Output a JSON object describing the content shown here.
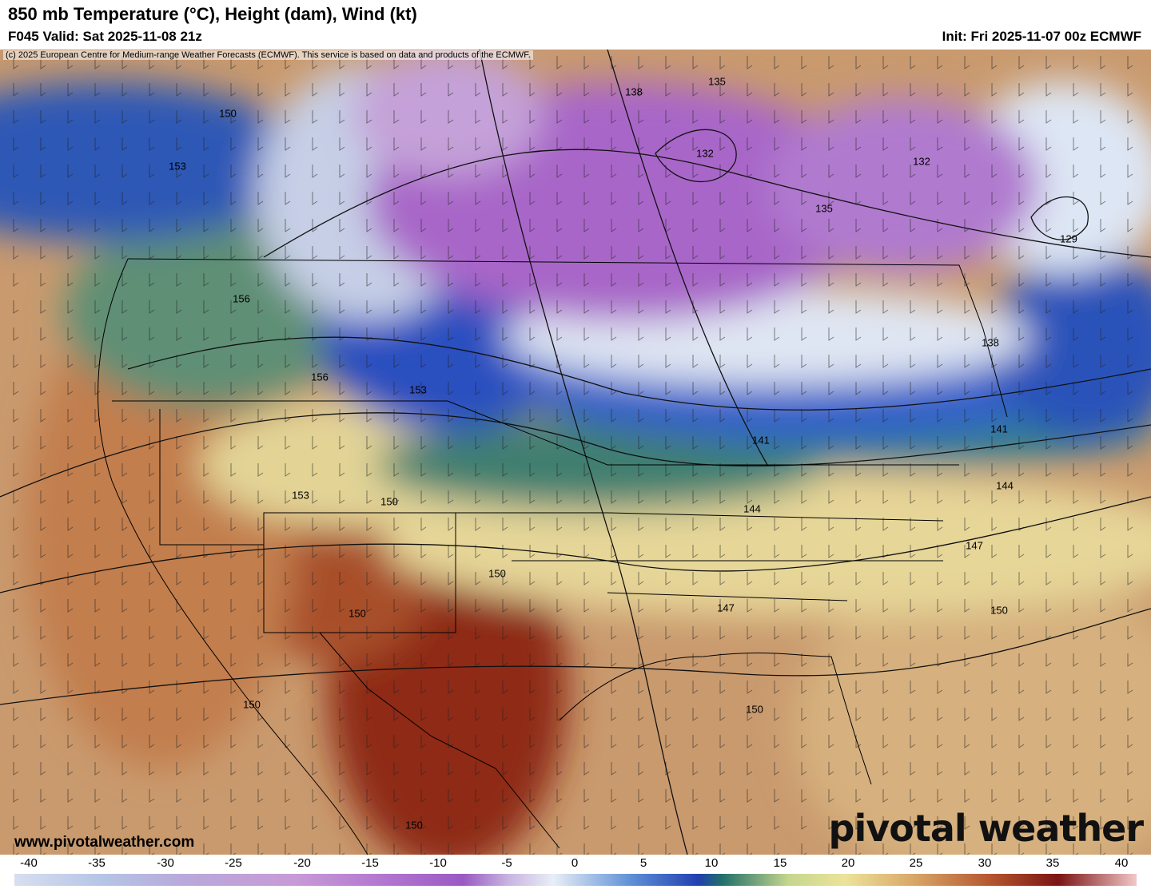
{
  "header": {
    "title": "850 mb Temperature (°C), Height (dam), Wind (kt)",
    "valid": "F045 Valid: Sat 2025-11-08 21z",
    "init": "Init: Fri 2025-11-07 00z ECMWF"
  },
  "map": {
    "copyright": "(c) 2025 European Centre for Medium-range Weather Forecasts (ECMWF). This service is based on data and products of the ECMWF.",
    "site_url": "www.pivotalweather.com",
    "brand": "pivotal weather",
    "height_labels": [
      "150",
      "153",
      "156",
      "156",
      "153",
      "153",
      "150",
      "150",
      "150",
      "150",
      "138",
      "135",
      "132",
      "132",
      "135",
      "129",
      "138",
      "141",
      "141",
      "144",
      "144",
      "147",
      "147",
      "150",
      "150",
      "150"
    ]
  },
  "colorbar": {
    "ticks": [
      "-40",
      "-35",
      "-30",
      "-25",
      "-20",
      "-15",
      "-10",
      "-5",
      "0",
      "5",
      "10",
      "15",
      "20",
      "25",
      "30",
      "35",
      "40"
    ],
    "colors": [
      "#d7dff0",
      "#b5c4e6",
      "#b8a9db",
      "#c89ad6",
      "#b57ad1",
      "#9a5ac4",
      "#c8b4e0",
      "#e8eef7",
      "#5e8fd6",
      "#2140b0",
      "#1f6f6a",
      "#c6d68e",
      "#ece39a",
      "#d9a86a",
      "#b5552f",
      "#7c1414",
      "#f2c7c7"
    ]
  }
}
